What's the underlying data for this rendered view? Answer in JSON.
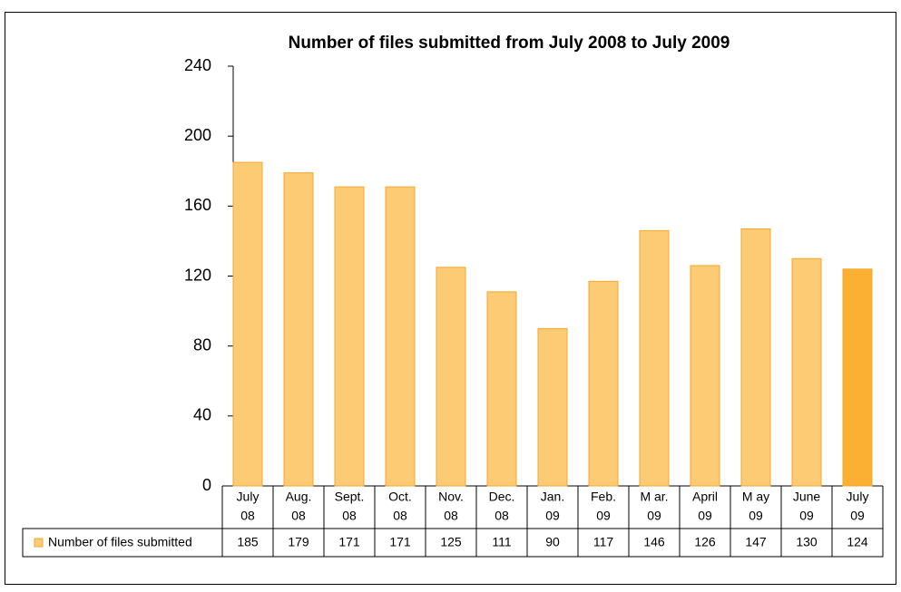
{
  "chart_data": {
    "type": "bar",
    "title": "Number of files submitted from July 2008 to July 2009",
    "categories": [
      [
        "July",
        "08"
      ],
      [
        "Aug.",
        "08"
      ],
      [
        "Sept.",
        "08"
      ],
      [
        "Oct.",
        "08"
      ],
      [
        "Nov.",
        "08"
      ],
      [
        "Dec.",
        "08"
      ],
      [
        "Jan.",
        "09"
      ],
      [
        "Feb.",
        "09"
      ],
      [
        "M ar.",
        "09"
      ],
      [
        "April",
        "09"
      ],
      [
        "M ay",
        "09"
      ],
      [
        "June",
        "09"
      ],
      [
        "July",
        "09"
      ]
    ],
    "series": [
      {
        "name": "Number of files submitted",
        "color": "#fdcb74",
        "values": [
          185,
          179,
          171,
          171,
          125,
          111,
          90,
          117,
          146,
          126,
          147,
          130,
          124
        ],
        "colors": [
          "#fdcb74",
          "#fdcb74",
          "#fdcb74",
          "#fdcb74",
          "#fdcb74",
          "#fdcb74",
          "#fdcb74",
          "#fdcb74",
          "#fdcb74",
          "#fdcb74",
          "#fdcb74",
          "#fdcb74",
          "#fbaf33"
        ]
      }
    ],
    "ylim": [
      0,
      240
    ],
    "yticks": [
      0,
      40,
      80,
      120,
      160,
      200,
      240
    ],
    "grid": false,
    "data_table": true
  }
}
